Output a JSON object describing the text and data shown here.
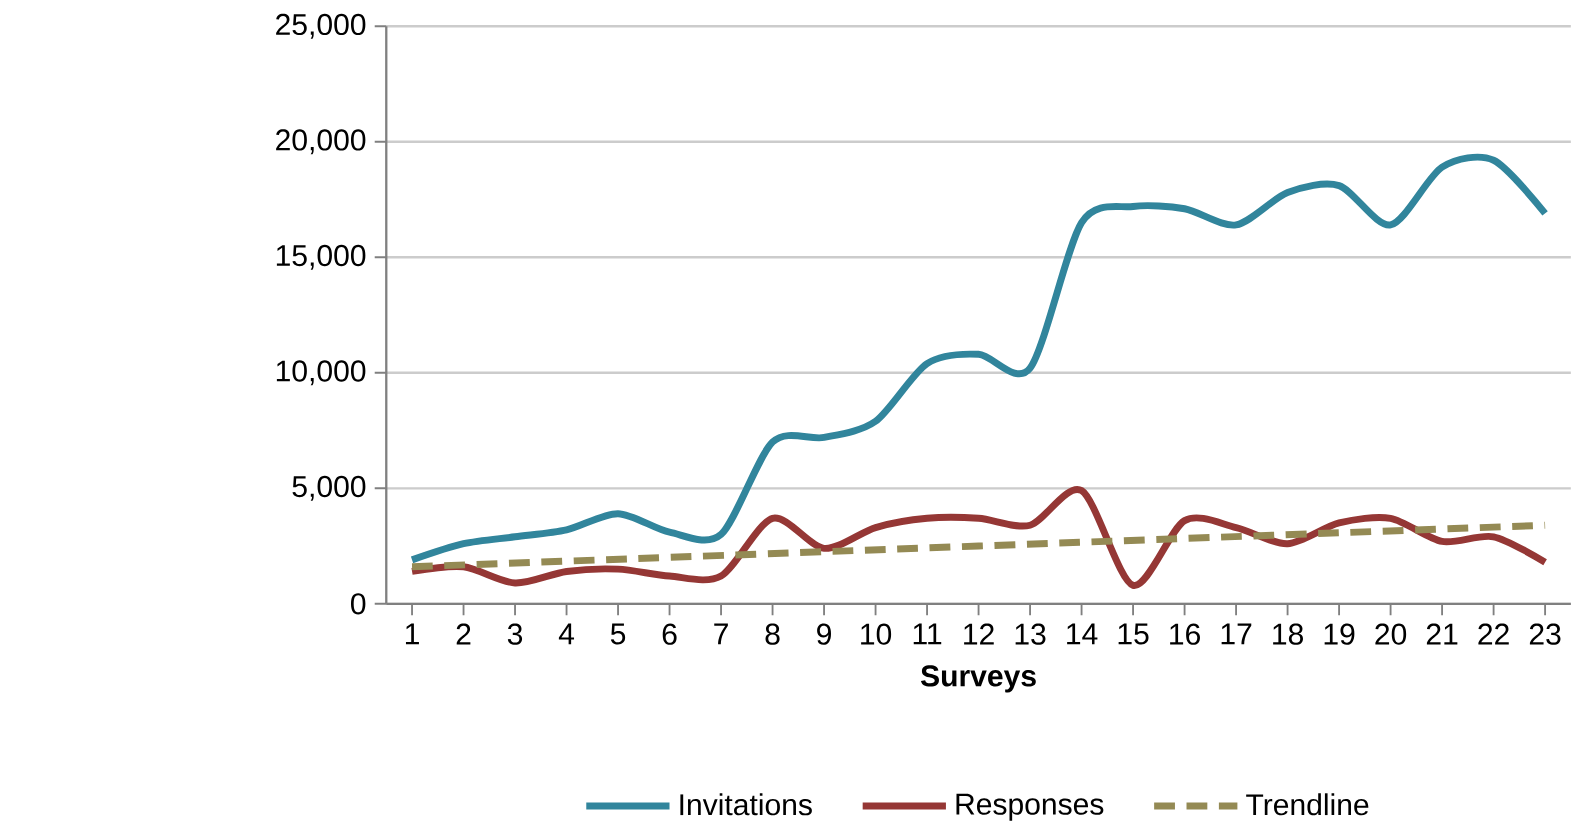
{
  "chart_data": {
    "type": "line",
    "xlabel": "Surveys",
    "categories": [
      "1",
      "2",
      "3",
      "4",
      "5",
      "6",
      "7",
      "8",
      "9",
      "10",
      "11",
      "12",
      "13",
      "14",
      "15",
      "16",
      "17",
      "18",
      "19",
      "20",
      "21",
      "22",
      "23"
    ],
    "series": [
      {
        "name": "Invitations",
        "color": "#31859c",
        "values": [
          1900,
          2600,
          2900,
          3200,
          3900,
          3100,
          3000,
          7000,
          7200,
          7900,
          10400,
          10800,
          10200,
          16500,
          17200,
          17100,
          16400,
          17800,
          18100,
          16400,
          18900,
          19200,
          16900
        ]
      },
      {
        "name": "Responses",
        "color": "#953735",
        "values": [
          1400,
          1600,
          900,
          1400,
          1500,
          1200,
          1200,
          3700,
          2400,
          3300,
          3700,
          3700,
          3400,
          4900,
          800,
          3600,
          3300,
          2600,
          3500,
          3700,
          2700,
          2900,
          1800
        ]
      },
      {
        "name": "Trendline",
        "color": "#948a54",
        "line_style": "dashed",
        "x": [
          "1",
          "23"
        ],
        "values": [
          1600,
          3400
        ]
      }
    ],
    "ylim": [
      0,
      25000
    ],
    "yticks": [
      {
        "value": 0,
        "label": "0"
      },
      {
        "value": 5000,
        "label": "5,000"
      },
      {
        "value": 10000,
        "label": "10,000"
      },
      {
        "value": 15000,
        "label": "15,000"
      },
      {
        "value": 20000,
        "label": "20,000"
      },
      {
        "value": 25000,
        "label": "25,000"
      }
    ],
    "grid": "y",
    "legend": "bottom",
    "marker": "none"
  }
}
